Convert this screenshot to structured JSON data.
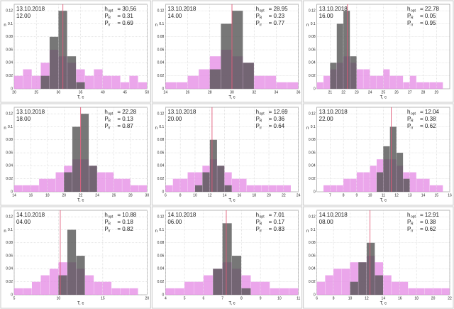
{
  "chart_data": [
    {
      "type": "histogram",
      "date": "13.10.2018",
      "time": "12.00",
      "x_label": "T, c",
      "y_label": "n",
      "stats": [
        {
          "main": "h",
          "sub": "opt",
          "value": "= 30,56"
        },
        {
          "main": "P",
          "sub": "R",
          "value": "= 0.31"
        },
        {
          "main": "P",
          "sub": "rr",
          "value": "= 0.69"
        }
      ],
      "xlim": [
        20,
        50
      ],
      "xticks": [
        20,
        25,
        30,
        35,
        40,
        45,
        50
      ],
      "ylim": [
        0,
        0.13
      ],
      "yticks": [
        0,
        0.02,
        0.04,
        0.06,
        0.08,
        0.1,
        0.12
      ],
      "grid": true,
      "bins": [
        20,
        22,
        24,
        26,
        28,
        30,
        32,
        34,
        36,
        38,
        40,
        42,
        44,
        46,
        48,
        50
      ],
      "series": [
        {
          "color": "#e690e6",
          "values": [
            0.02,
            0.03,
            0.02,
            0.04,
            0.06,
            0.05,
            0.04,
            0.03,
            0.02,
            0.03,
            0.02,
            0.02,
            0.01,
            0.02,
            0.01
          ]
        },
        {
          "color": "#555555",
          "values": [
            0,
            0,
            0,
            0.02,
            0.08,
            0.12,
            0.05,
            0.01,
            0,
            0,
            0,
            0,
            0,
            0,
            0
          ]
        }
      ],
      "vline": 31,
      "vline_color": "#e05a78"
    },
    {
      "type": "histogram",
      "date": "13.10.2018",
      "time": "14.00",
      "x_label": "T, c",
      "y_label": "n",
      "stats": [
        {
          "main": "h",
          "sub": "opt",
          "value": "= 28.95"
        },
        {
          "main": "P",
          "sub": "R",
          "value": "= 0.23"
        },
        {
          "main": "P",
          "sub": "rr",
          "value": "= 0.77"
        }
      ],
      "xlim": [
        24,
        36
      ],
      "xticks": [
        24,
        26,
        28,
        30,
        32,
        34,
        36
      ],
      "ylim": [
        0,
        0.13
      ],
      "yticks": [
        0,
        0.02,
        0.04,
        0.06,
        0.08,
        0.1,
        0.12
      ],
      "grid": true,
      "bins": [
        24,
        25,
        26,
        27,
        28,
        29,
        30,
        31,
        32,
        33,
        34,
        35,
        36
      ],
      "series": [
        {
          "color": "#e690e6",
          "values": [
            0.01,
            0.01,
            0.02,
            0.03,
            0.05,
            0.06,
            0.05,
            0.04,
            0.02,
            0.02,
            0.01,
            0.01
          ]
        },
        {
          "color": "#555555",
          "values": [
            0,
            0,
            0,
            0,
            0.03,
            0.1,
            0.12,
            0.04,
            0,
            0,
            0,
            0
          ]
        }
      ],
      "vline": 30,
      "vline_color": "#e05a78"
    },
    {
      "type": "histogram",
      "date": "13.10.2018",
      "time": "16.00",
      "x_label": "T, c",
      "y_label": "n",
      "stats": [
        {
          "main": "h",
          "sub": "opt",
          "value": "= 22.78"
        },
        {
          "main": "P",
          "sub": "R",
          "value": "= 0.05"
        },
        {
          "main": "P",
          "sub": "rr",
          "value": "= 0.95"
        }
      ],
      "xlim": [
        20,
        30
      ],
      "xticks": [
        21,
        22,
        23,
        24,
        25,
        26,
        27,
        28,
        29
      ],
      "ylim": [
        0,
        0.13
      ],
      "yticks": [
        0,
        0.02,
        0.04,
        0.06,
        0.08,
        0.1,
        0.12
      ],
      "grid": true,
      "bins": [
        20,
        20.5,
        21,
        21.5,
        22,
        22.5,
        23,
        23.5,
        24,
        24.5,
        25,
        25.5,
        26,
        26.5,
        27,
        27.5,
        28,
        28.5,
        29,
        29.5,
        30
      ],
      "series": [
        {
          "color": "#e690e6",
          "values": [
            0.01,
            0.02,
            0.03,
            0.04,
            0.05,
            0.04,
            0.03,
            0.03,
            0.02,
            0.02,
            0.03,
            0.02,
            0.02,
            0.01,
            0.02,
            0.01,
            0.01,
            0.01,
            0.01,
            0
          ]
        },
        {
          "color": "#555555",
          "values": [
            0,
            0,
            0.04,
            0.1,
            0.12,
            0.05,
            0,
            0,
            0,
            0,
            0,
            0,
            0,
            0,
            0,
            0,
            0,
            0,
            0,
            0
          ]
        }
      ],
      "vline": 22.3,
      "vline_color": "#e05a78"
    },
    {
      "type": "histogram",
      "date": "13.10.2018",
      "time": "18.00",
      "x_label": "T, c",
      "y_label": "n",
      "stats": [
        {
          "main": "h",
          "sub": "opt",
          "value": "= 22.28"
        },
        {
          "main": "P",
          "sub": "R",
          "value": "= 0.13"
        },
        {
          "main": "P",
          "sub": "rr",
          "value": "= 0.87"
        }
      ],
      "xlim": [
        14,
        30
      ],
      "xticks": [
        14,
        16,
        18,
        20,
        22,
        24,
        26,
        28,
        30
      ],
      "ylim": [
        0,
        0.13
      ],
      "yticks": [
        0,
        0.02,
        0.04,
        0.06,
        0.08,
        0.1,
        0.12
      ],
      "grid": true,
      "bins": [
        14,
        15,
        16,
        17,
        18,
        19,
        20,
        21,
        22,
        23,
        24,
        25,
        26,
        27,
        28,
        29,
        30
      ],
      "series": [
        {
          "color": "#e690e6",
          "values": [
            0.01,
            0.01,
            0.01,
            0.02,
            0.02,
            0.03,
            0.04,
            0.05,
            0.05,
            0.04,
            0.03,
            0.03,
            0.02,
            0.02,
            0.01,
            0.01
          ]
        },
        {
          "color": "#555555",
          "values": [
            0,
            0,
            0,
            0,
            0,
            0,
            0.03,
            0.1,
            0.12,
            0.04,
            0,
            0,
            0,
            0,
            0,
            0
          ]
        }
      ],
      "vline": 22,
      "vline_color": "#e05a78"
    },
    {
      "type": "histogram",
      "date": "13.10.2018",
      "time": "20.00",
      "x_label": "T, c",
      "y_label": "n",
      "stats": [
        {
          "main": "h",
          "sub": "opt",
          "value": "= 12.69"
        },
        {
          "main": "P",
          "sub": "R",
          "value": "= 0.36"
        },
        {
          "main": "P",
          "sub": "rr",
          "value": "= 0.64"
        }
      ],
      "xlim": [
        6,
        24
      ],
      "xticks": [
        6,
        8,
        10,
        12,
        14,
        16,
        18,
        20,
        22,
        24
      ],
      "ylim": [
        0,
        0.13
      ],
      "yticks": [
        0,
        0.02,
        0.04,
        0.06,
        0.08,
        0.1,
        0.12
      ],
      "grid": true,
      "bins": [
        6,
        7,
        8,
        9,
        10,
        11,
        12,
        13,
        14,
        15,
        16,
        17,
        18,
        19,
        20,
        21,
        22,
        23,
        24
      ],
      "series": [
        {
          "color": "#e690e6",
          "values": [
            0.01,
            0.02,
            0.02,
            0.03,
            0.03,
            0.04,
            0.05,
            0.04,
            0.03,
            0.02,
            0.02,
            0.01,
            0.01,
            0.01,
            0.01,
            0.01,
            0.01,
            0
          ]
        },
        {
          "color": "#555555",
          "values": [
            0,
            0,
            0,
            0,
            0.01,
            0.03,
            0.08,
            0.04,
            0.01,
            0,
            0,
            0,
            0,
            0,
            0,
            0,
            0,
            0
          ]
        }
      ],
      "vline": 12.3,
      "vline_color": "#e05a78"
    },
    {
      "type": "histogram",
      "date": "13.10.2018",
      "time": "22.00",
      "x_label": "T, c",
      "y_label": "n",
      "stats": [
        {
          "main": "h",
          "sub": "opt",
          "value": "= 12.04"
        },
        {
          "main": "P",
          "sub": "R",
          "value": "= 0.38"
        },
        {
          "main": "P",
          "sub": "rr",
          "value": "= 0.62"
        }
      ],
      "xlim": [
        6,
        16
      ],
      "xticks": [
        7,
        8,
        9,
        10,
        11,
        12,
        13,
        14,
        15,
        16
      ],
      "ylim": [
        0,
        0.13
      ],
      "yticks": [
        0,
        0.02,
        0.04,
        0.06,
        0.08,
        0.1,
        0.12
      ],
      "grid": true,
      "bins": [
        6,
        6.5,
        7,
        7.5,
        8,
        8.5,
        9,
        9.5,
        10,
        10.5,
        11,
        11.5,
        12,
        12.5,
        13,
        13.5,
        14,
        14.5,
        15,
        15.5,
        16
      ],
      "series": [
        {
          "color": "#e690e6",
          "values": [
            0,
            0.01,
            0.01,
            0.01,
            0.02,
            0.02,
            0.03,
            0.03,
            0.04,
            0.05,
            0.05,
            0.05,
            0.04,
            0.03,
            0.03,
            0.02,
            0.02,
            0.01,
            0.01,
            0
          ]
        },
        {
          "color": "#555555",
          "values": [
            0,
            0,
            0,
            0,
            0,
            0,
            0,
            0,
            0,
            0.03,
            0.07,
            0.1,
            0.06,
            0.02,
            0,
            0,
            0,
            0,
            0,
            0
          ]
        }
      ],
      "vline": 11.6,
      "vline_color": "#e05a78"
    },
    {
      "type": "histogram",
      "date": "14.10.2018",
      "time": "04.00",
      "x_label": "T, c",
      "y_label": "n",
      "stats": [
        {
          "main": "h",
          "sub": "opt",
          "value": "= 10.88"
        },
        {
          "main": "P",
          "sub": "R",
          "value": "= 0.18"
        },
        {
          "main": "P",
          "sub": "rr",
          "value": "= 0.82"
        }
      ],
      "xlim": [
        5,
        20
      ],
      "xticks": [
        5,
        10,
        15,
        20
      ],
      "ylim": [
        0,
        0.13
      ],
      "yticks": [
        0,
        0.02,
        0.04,
        0.06,
        0.08,
        0.1,
        0.12
      ],
      "grid": true,
      "bins": [
        5,
        6,
        7,
        8,
        9,
        10,
        11,
        12,
        13,
        14,
        15,
        16,
        17,
        18,
        19,
        20
      ],
      "series": [
        {
          "color": "#e690e6",
          "values": [
            0.01,
            0.01,
            0.02,
            0.03,
            0.04,
            0.05,
            0.05,
            0.04,
            0.03,
            0.02,
            0.02,
            0.01,
            0.01,
            0.01,
            0
          ]
        },
        {
          "color": "#555555",
          "values": [
            0,
            0,
            0,
            0,
            0,
            0.03,
            0.1,
            0.06,
            0,
            0,
            0,
            0,
            0,
            0,
            0
          ]
        }
      ],
      "vline": 10.2,
      "vline_color": "#e05a78"
    },
    {
      "type": "histogram",
      "date": "14.10.2018",
      "time": "06.00",
      "x_label": "T, c",
      "y_label": "n",
      "stats": [
        {
          "main": "h",
          "sub": "opt",
          "value": "= 7.01"
        },
        {
          "main": "P",
          "sub": "R",
          "value": "= 0.17"
        },
        {
          "main": "P",
          "sub": "rr",
          "value": "= 0.83"
        }
      ],
      "xlim": [
        4,
        11
      ],
      "xticks": [
        4,
        5,
        6,
        7,
        8,
        9,
        10,
        11
      ],
      "ylim": [
        0,
        0.13
      ],
      "yticks": [
        0,
        0.02,
        0.04,
        0.06,
        0.08,
        0.1,
        0.12
      ],
      "grid": true,
      "bins": [
        4,
        4.5,
        5,
        5.5,
        6,
        6.5,
        7,
        7.5,
        8,
        8.5,
        9,
        9.5,
        10,
        10.5,
        11
      ],
      "series": [
        {
          "color": "#e690e6",
          "values": [
            0.01,
            0.01,
            0.02,
            0.02,
            0.03,
            0.04,
            0.05,
            0.04,
            0.03,
            0.02,
            0.02,
            0.01,
            0.01,
            0.01
          ]
        },
        {
          "color": "#555555",
          "values": [
            0,
            0,
            0,
            0,
            0,
            0.04,
            0.11,
            0.06,
            0.01,
            0,
            0,
            0,
            0,
            0
          ]
        }
      ],
      "vline": 7.2,
      "vline_color": "#e05a78"
    },
    {
      "type": "histogram",
      "date": "14.10.2018",
      "time": "08.00",
      "x_label": "T, c",
      "y_label": "n",
      "stats": [
        {
          "main": "h",
          "sub": "opt",
          "value": "= 12.91"
        },
        {
          "main": "P",
          "sub": "R",
          "value": "= 0.38"
        },
        {
          "main": "P",
          "sub": "rr",
          "value": "= 0.62"
        }
      ],
      "xlim": [
        6,
        22
      ],
      "xticks": [
        6,
        8,
        10,
        12,
        14,
        16,
        18,
        20,
        22
      ],
      "ylim": [
        0,
        0.13
      ],
      "yticks": [
        0,
        0.02,
        0.04,
        0.06,
        0.08,
        0.1,
        0.12
      ],
      "grid": true,
      "bins": [
        6,
        7,
        8,
        9,
        10,
        11,
        12,
        13,
        14,
        15,
        16,
        17,
        18,
        19,
        20,
        21,
        22
      ],
      "series": [
        {
          "color": "#e690e6",
          "values": [
            0.02,
            0.03,
            0.04,
            0.04,
            0.05,
            0.05,
            0.06,
            0.05,
            0.03,
            0.02,
            0.02,
            0.01,
            0.01,
            0.01,
            0.01,
            0.01
          ]
        },
        {
          "color": "#555555",
          "values": [
            0,
            0,
            0,
            0,
            0.02,
            0.05,
            0.08,
            0.03,
            0,
            0,
            0,
            0,
            0,
            0,
            0,
            0
          ]
        }
      ],
      "vline": 12.4,
      "vline_color": "#e05a78"
    }
  ]
}
